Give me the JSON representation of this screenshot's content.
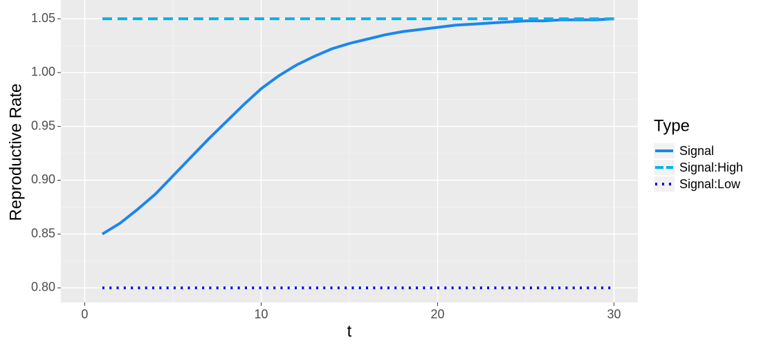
{
  "chart_data": {
    "type": "line",
    "x_label": "t",
    "y_label": "Reproductive Rate",
    "legend_title": "Type",
    "x": [
      1,
      2,
      3,
      4,
      5,
      6,
      7,
      8,
      9,
      10,
      11,
      12,
      13,
      14,
      15,
      16,
      17,
      18,
      19,
      20,
      21,
      22,
      23,
      24,
      25,
      26,
      27,
      28,
      29,
      30
    ],
    "series": [
      {
        "name": "Signal",
        "color": "#1c86ee",
        "linetype": "solid",
        "values": [
          0.85,
          0.86,
          0.873,
          0.887,
          0.904,
          0.921,
          0.938,
          0.954,
          0.97,
          0.985,
          0.997,
          1.007,
          1.015,
          1.022,
          1.027,
          1.031,
          1.035,
          1.038,
          1.04,
          1.042,
          1.044,
          1.045,
          1.046,
          1.047,
          1.048,
          1.048,
          1.049,
          1.049,
          1.049,
          1.05
        ]
      },
      {
        "name": "Signal:High",
        "color": "#00b2ee",
        "linetype": "dashed",
        "values": [
          1.05,
          1.05,
          1.05,
          1.05,
          1.05,
          1.05,
          1.05,
          1.05,
          1.05,
          1.05,
          1.05,
          1.05,
          1.05,
          1.05,
          1.05,
          1.05,
          1.05,
          1.05,
          1.05,
          1.05,
          1.05,
          1.05,
          1.05,
          1.05,
          1.05,
          1.05,
          1.05,
          1.05,
          1.05,
          1.05
        ]
      },
      {
        "name": "Signal:Low",
        "color": "#0000ff",
        "linetype": "dotted",
        "values": [
          0.8,
          0.8,
          0.8,
          0.8,
          0.8,
          0.8,
          0.8,
          0.8,
          0.8,
          0.8,
          0.8,
          0.8,
          0.8,
          0.8,
          0.8,
          0.8,
          0.8,
          0.8,
          0.8,
          0.8,
          0.8,
          0.8,
          0.8,
          0.8,
          0.8,
          0.8,
          0.8,
          0.8,
          0.8,
          0.8
        ]
      }
    ],
    "xlim": [
      -1.35,
      31.35
    ],
    "xticks": [
      0,
      10,
      20,
      30
    ],
    "ylim": [
      0.7865,
      1.0674
    ],
    "yticks": [
      {
        "value": 0.8,
        "label": "0.80"
      },
      {
        "value": 0.85,
        "label": "0.85"
      },
      {
        "value": 0.9,
        "label": "0.90"
      },
      {
        "value": 0.95,
        "label": "0.95"
      },
      {
        "value": 1.0,
        "label": "1.00"
      },
      {
        "value": 1.05,
        "label": "1.05"
      }
    ],
    "grid": true,
    "legend_position": "right"
  }
}
